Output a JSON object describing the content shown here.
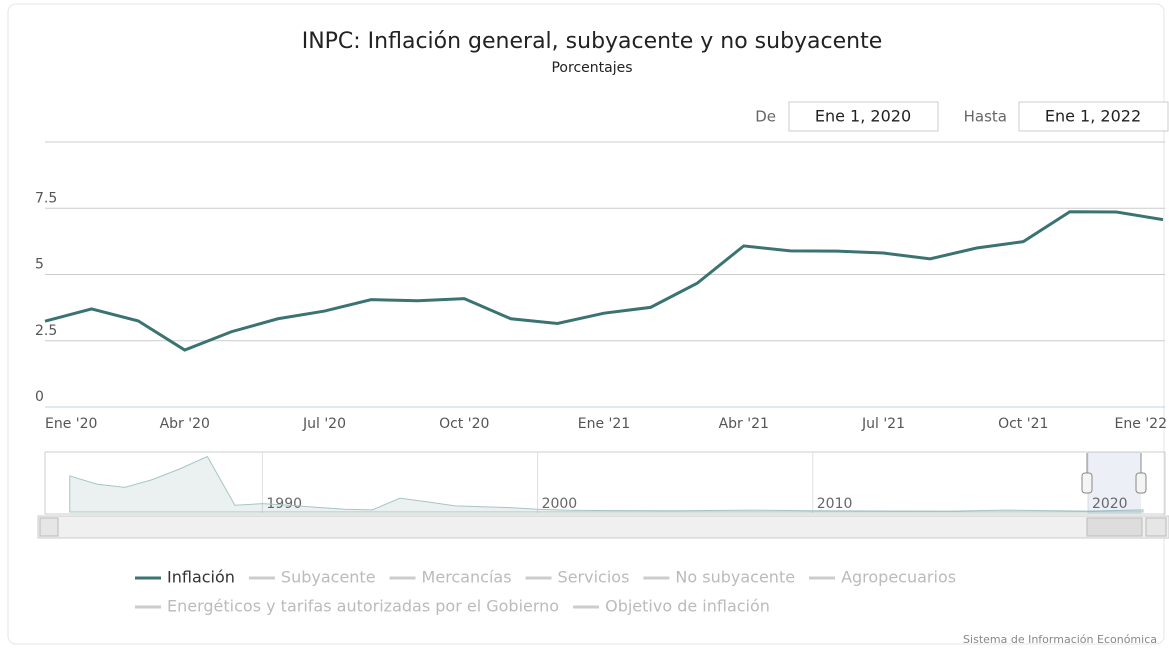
{
  "chart_data": {
    "type": "line",
    "title": "INPC: Inflación general, subyacente y no subyacente",
    "subtitle": "Porcentajes",
    "range_selector": {
      "from_label": "De",
      "from": "Ene 1, 2020",
      "to_label": "Hasta",
      "to": "Ene 1, 2022"
    },
    "categories": [
      "Ene '20",
      null,
      null,
      "Abr '20",
      null,
      null,
      "Jul '20",
      null,
      null,
      "Oct '20",
      null,
      null,
      "Ene '21",
      null,
      null,
      "Abr '21",
      null,
      null,
      "Jul '21",
      null,
      null,
      "Oct '21",
      null,
      null,
      "Ene '22"
    ],
    "series": [
      {
        "name": "Inflación",
        "color": "#3b7373",
        "values": [
          3.24,
          3.7,
          3.25,
          2.15,
          2.84,
          3.33,
          3.62,
          4.05,
          4.01,
          4.09,
          3.33,
          3.15,
          3.54,
          3.76,
          4.67,
          6.08,
          5.89,
          5.88,
          5.81,
          5.59,
          6.0,
          6.24,
          7.37,
          7.36,
          7.07
        ]
      },
      {
        "name": "Subyacente",
        "color": "#cccccc",
        "visible": false
      },
      {
        "name": "Mercancías",
        "color": "#cccccc",
        "visible": false
      },
      {
        "name": "Servicios",
        "color": "#cccccc",
        "visible": false
      },
      {
        "name": "No subyacente",
        "color": "#cccccc",
        "visible": false
      },
      {
        "name": "Agropecuarios",
        "color": "#cccccc",
        "visible": false
      },
      {
        "name": "Energéticos y tarifas autorizadas por el Gobierno",
        "color": "#cccccc",
        "visible": false
      },
      {
        "name": "Objetivo de inflación",
        "color": "#cccccc",
        "visible": false
      }
    ],
    "ylim": [
      0,
      10
    ],
    "yticks": [
      0,
      2.5,
      5,
      7.5
    ],
    "grid": true,
    "navigator": {
      "x": [
        1983,
        1984,
        1985,
        1986,
        1987,
        1988,
        1989,
        1990,
        1991,
        1992,
        1993,
        1994,
        1995,
        1996,
        1997,
        1998,
        1999,
        2000,
        2001,
        2002,
        2005,
        2008,
        2010,
        2015,
        2017,
        2020,
        2022
      ],
      "values": [
        117,
        90,
        80,
        105,
        140,
        180,
        22,
        27,
        22,
        15,
        9,
        7,
        45,
        33,
        20,
        17,
        14,
        9,
        6,
        5,
        4,
        6,
        4,
        3,
        6,
        3,
        7
      ],
      "xlim": [
        1982.1,
        2022.8
      ],
      "ylim": [
        0,
        185
      ],
      "xticks": [
        1990,
        2000,
        2010,
        2020
      ]
    },
    "credits": "Sistema de Información Económica"
  }
}
